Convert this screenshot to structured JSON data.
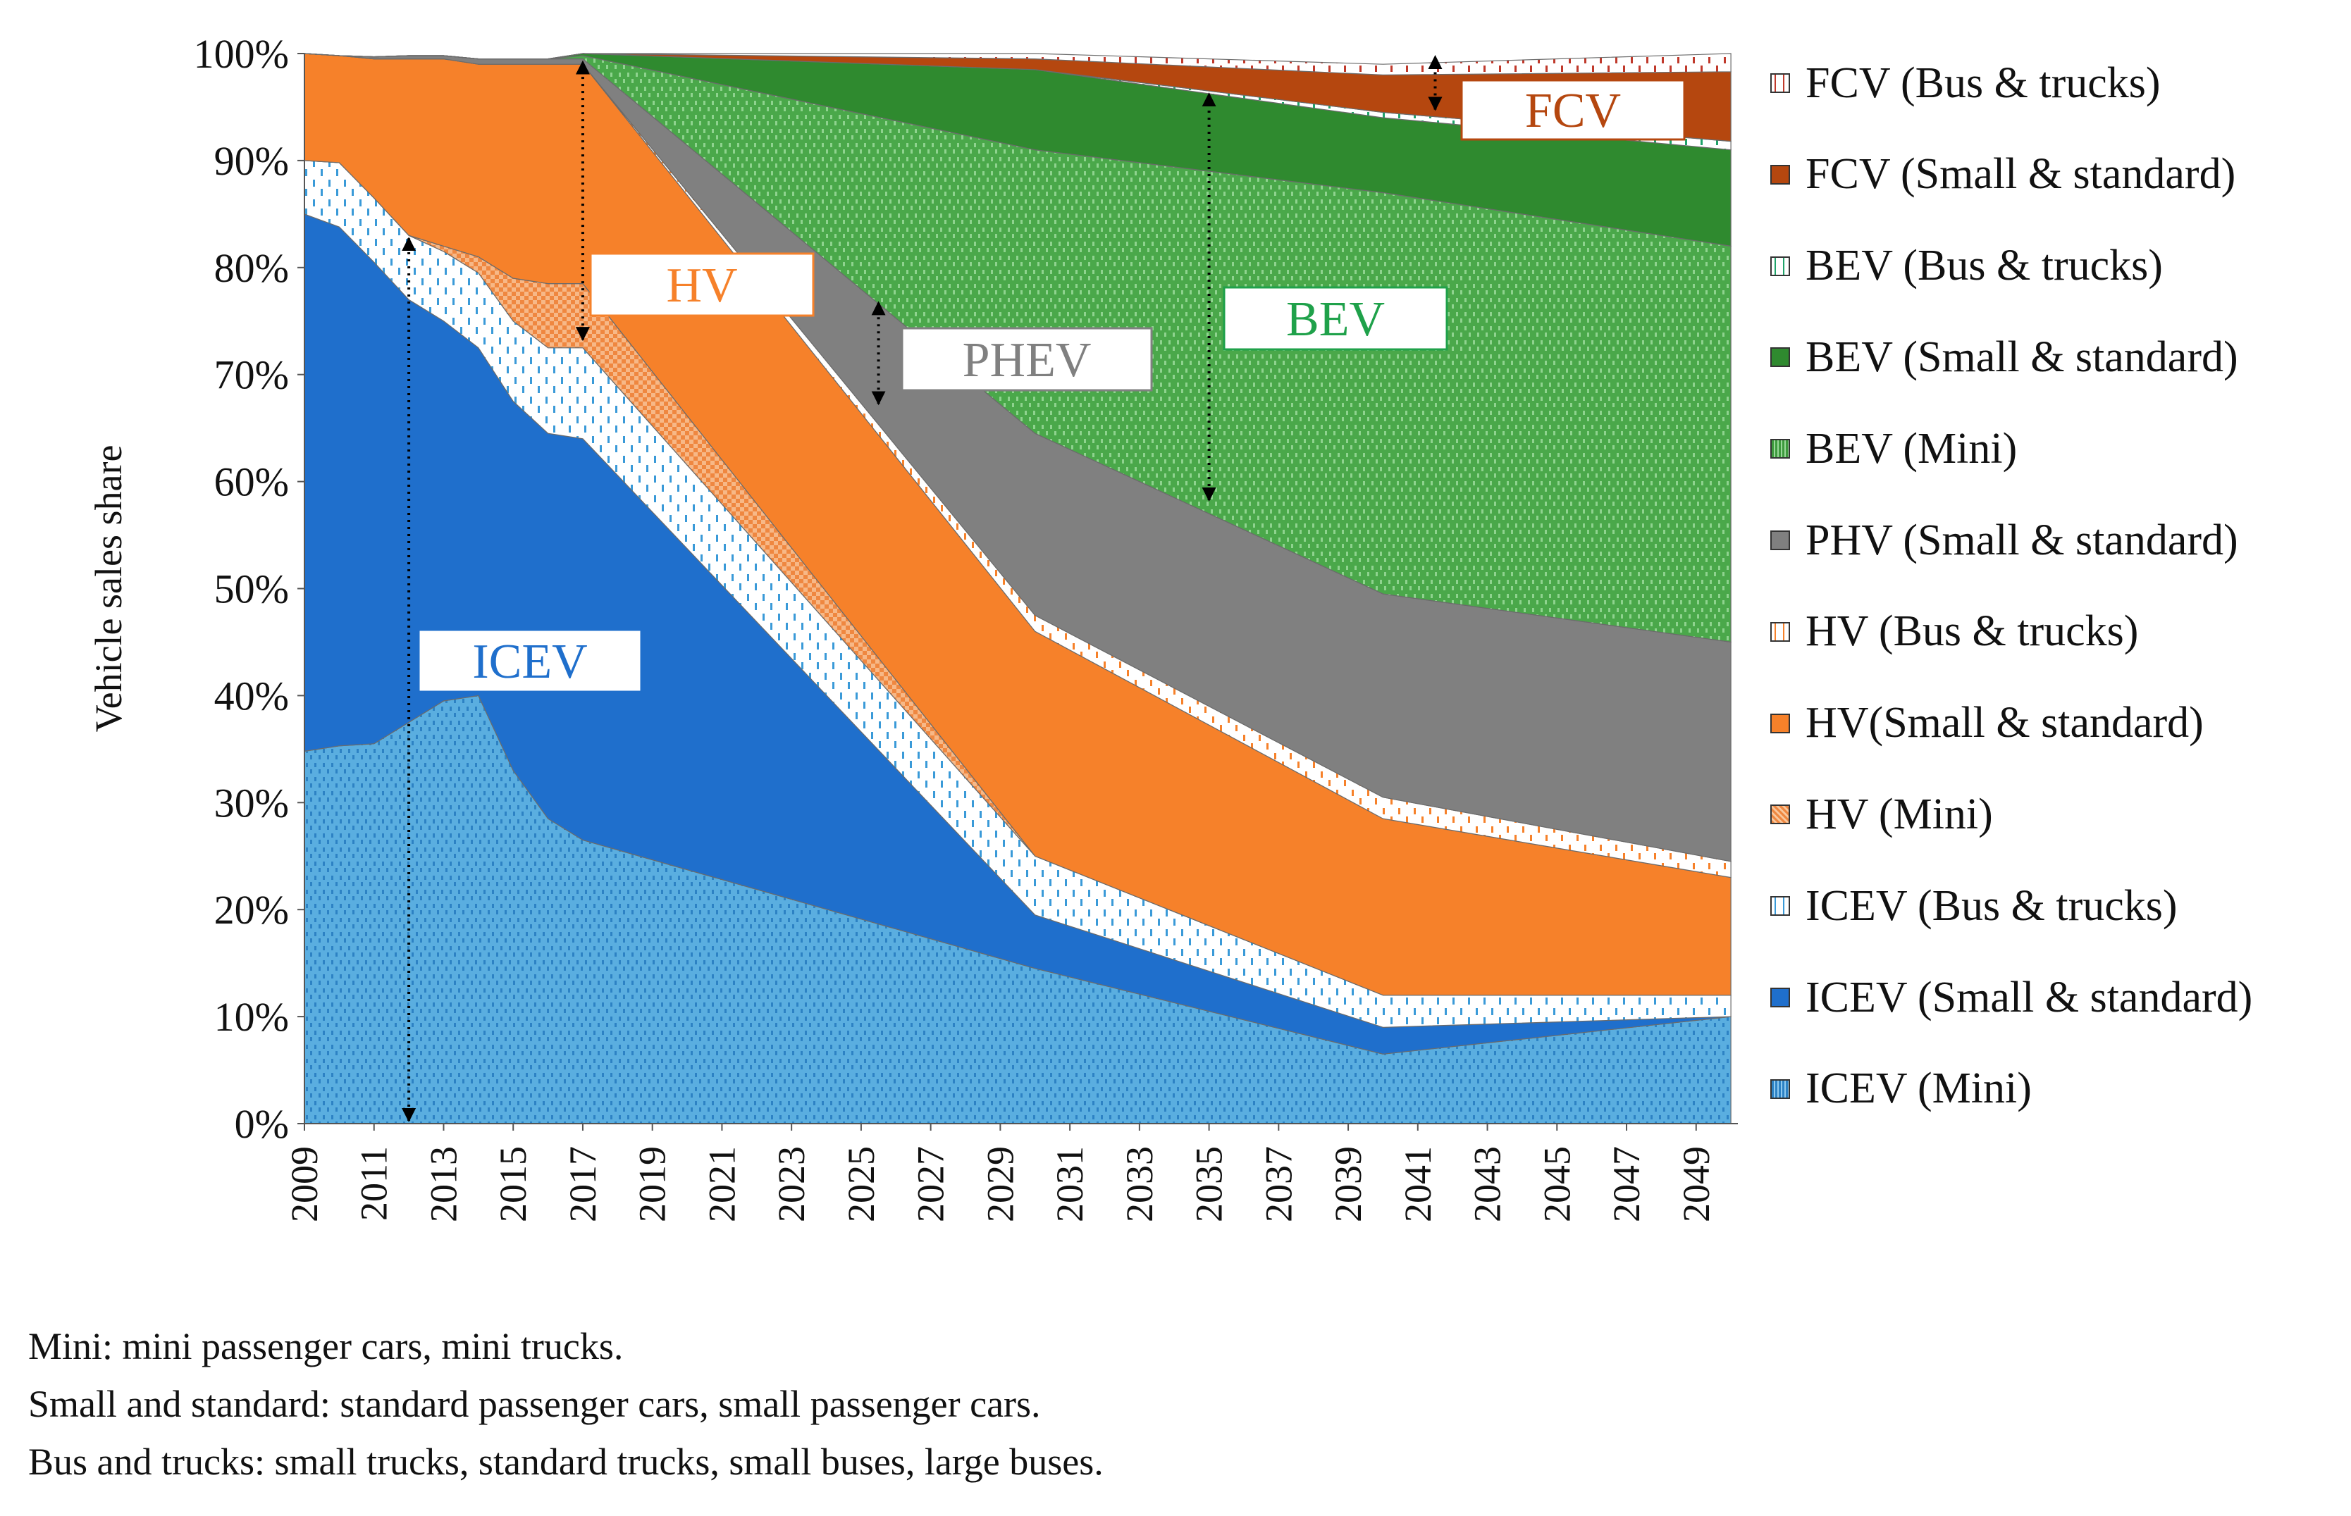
{
  "chart_data": {
    "type": "area",
    "stacked": true,
    "xlabel": "",
    "ylabel": "Vehicle sales share",
    "ylim": [
      0,
      100
    ],
    "y_ticks": [
      "0%",
      "10%",
      "20%",
      "30%",
      "40%",
      "50%",
      "60%",
      "70%",
      "80%",
      "90%",
      "100%"
    ],
    "x_ticks": [
      "2009",
      "2011",
      "2013",
      "2015",
      "2017",
      "2019",
      "2021",
      "2023",
      "2025",
      "2027",
      "2029",
      "2031",
      "2033",
      "2035",
      "2037",
      "2039",
      "2041",
      "2043",
      "2045",
      "2047",
      "2049"
    ],
    "x": [
      2009,
      2010,
      2011,
      2012,
      2013,
      2014,
      2015,
      2016,
      2017,
      2030,
      2040,
      2050
    ],
    "series": [
      {
        "name": "ICEV (Mini)",
        "color": "#4aa3d8",
        "pattern": "dots-blue",
        "values": [
          34.8,
          35.3,
          35.5,
          37.5,
          39.5,
          40.0,
          33.0,
          28.5,
          26.5,
          14.5,
          6.5,
          10.0
        ]
      },
      {
        "name": "ICEV  (Small & standard)",
        "color": "#1f6fcc",
        "pattern": "solid",
        "values": [
          50.2,
          48.5,
          45.0,
          39.5,
          35.5,
          32.5,
          34.5,
          36.0,
          37.5,
          5.0,
          2.5,
          0.0
        ]
      },
      {
        "name": "ICEV (Bus & trucks)",
        "color": "#ffffff",
        "pattern": "dash-blue",
        "values": [
          5.0,
          6.0,
          6.0,
          6.0,
          6.5,
          7.0,
          7.5,
          8.0,
          8.5,
          5.5,
          3.0,
          2.0
        ]
      },
      {
        "name": "HV (Mini)",
        "color": "#f5a66e",
        "pattern": "check-orange",
        "values": [
          0.0,
          0.0,
          0.0,
          0.0,
          0.5,
          1.5,
          4.0,
          6.0,
          6.0,
          0.0,
          0.0,
          0.0
        ]
      },
      {
        "name": "HV(Small & standard)",
        "color": "#f6812a",
        "pattern": "solid",
        "values": [
          10.0,
          10.0,
          13.0,
          16.5,
          17.5,
          18.0,
          20.0,
          20.5,
          20.5,
          21.0,
          16.5,
          11.0
        ]
      },
      {
        "name": "HV (Bus & trucks)",
        "color": "#ffffff",
        "pattern": "dash-orange",
        "values": [
          0.0,
          0.0,
          0.0,
          0.0,
          0.0,
          0.0,
          0.0,
          0.0,
          0.0,
          1.5,
          2.0,
          1.5
        ]
      },
      {
        "name": "PHV (Small & standard)",
        "color": "#808080",
        "pattern": "solid",
        "values": [
          0.0,
          0.0,
          0.2,
          0.3,
          0.3,
          0.5,
          0.5,
          0.5,
          0.5,
          17.0,
          19.0,
          20.5
        ]
      },
      {
        "name": "BEV (Mini)",
        "color": "#3d9a3d",
        "pattern": "dots-green",
        "values": [
          0.0,
          0.0,
          0.0,
          0.0,
          0.0,
          0.0,
          0.0,
          0.0,
          0.3,
          26.5,
          37.5,
          37.0
        ]
      },
      {
        "name": "BEV (Small & standard)",
        "color": "#2f8a2f",
        "pattern": "solid",
        "values": [
          0.0,
          0.0,
          0.0,
          0.0,
          0.0,
          0.0,
          0.0,
          0.0,
          0.2,
          7.5,
          7.0,
          9.0
        ]
      },
      {
        "name": "BEV (Bus & trucks)",
        "color": "#ffffff",
        "pattern": "dash-green",
        "values": [
          0.0,
          0.0,
          0.0,
          0.0,
          0.0,
          0.0,
          0.0,
          0.0,
          0.0,
          0.0,
          0.5,
          0.8
        ]
      },
      {
        "name": "FCV (Small & standard)",
        "color": "#b5470f",
        "pattern": "solid",
        "values": [
          0.0,
          0.0,
          0.0,
          0.0,
          0.0,
          0.0,
          0.0,
          0.0,
          0.0,
          1.0,
          3.5,
          6.5
        ]
      },
      {
        "name": "FCV (Bus & trucks)",
        "color": "#ffffff",
        "pattern": "dash-red",
        "values": [
          0.0,
          0.0,
          0.0,
          0.0,
          0.0,
          0.0,
          0.0,
          0.0,
          0.0,
          0.5,
          1.0,
          1.7
        ]
      }
    ],
    "legend": [
      {
        "label": "FCV (Bus & trucks)",
        "pattern": "dash-red"
      },
      {
        "label": "FCV (Small & standard)",
        "pattern": "solid",
        "color": "#b5470f"
      },
      {
        "label": "BEV (Bus & trucks)",
        "pattern": "dash-green"
      },
      {
        "label": "BEV (Small & standard)",
        "pattern": "solid",
        "color": "#2f8a2f"
      },
      {
        "label": "BEV (Mini)",
        "pattern": "dots-green"
      },
      {
        "label": "PHV (Small & standard)",
        "pattern": "solid",
        "color": "#808080"
      },
      {
        "label": "HV (Bus & trucks)",
        "pattern": "dash-orange"
      },
      {
        "label": "HV(Small & standard)",
        "pattern": "solid",
        "color": "#f6812a"
      },
      {
        "label": "HV (Mini)",
        "pattern": "check-orange"
      },
      {
        "label": "ICEV (Bus & trucks)",
        "pattern": "dash-blue"
      },
      {
        "label": "ICEV  (Small & standard)",
        "pattern": "solid",
        "color": "#1f6fcc"
      },
      {
        "label": "ICEV (Mini)",
        "pattern": "dots-blue"
      }
    ],
    "annotations": [
      {
        "text": "ICEV",
        "color": "#1f6fcc",
        "year": 2012,
        "range": [
          0,
          83
        ]
      },
      {
        "text": "HV",
        "color": "#f6812a",
        "year": 2017,
        "range": [
          73,
          99.5
        ]
      },
      {
        "text": "PHEV",
        "color": "#808080",
        "year": 2025.5,
        "range": [
          67,
          77
        ]
      },
      {
        "text": "BEV",
        "color": "#1fa14a",
        "year": 2035,
        "range": [
          58,
          96.5
        ]
      },
      {
        "text": "FCV",
        "color": "#b5470f",
        "year": 2041.5,
        "range": [
          94.5,
          100
        ]
      }
    ]
  },
  "notes": [
    "Mini: mini passenger cars, mini trucks.",
    "Small and standard: standard passenger cars, small passenger cars.",
    "Bus and trucks: small trucks, standard trucks, small buses, large buses."
  ]
}
